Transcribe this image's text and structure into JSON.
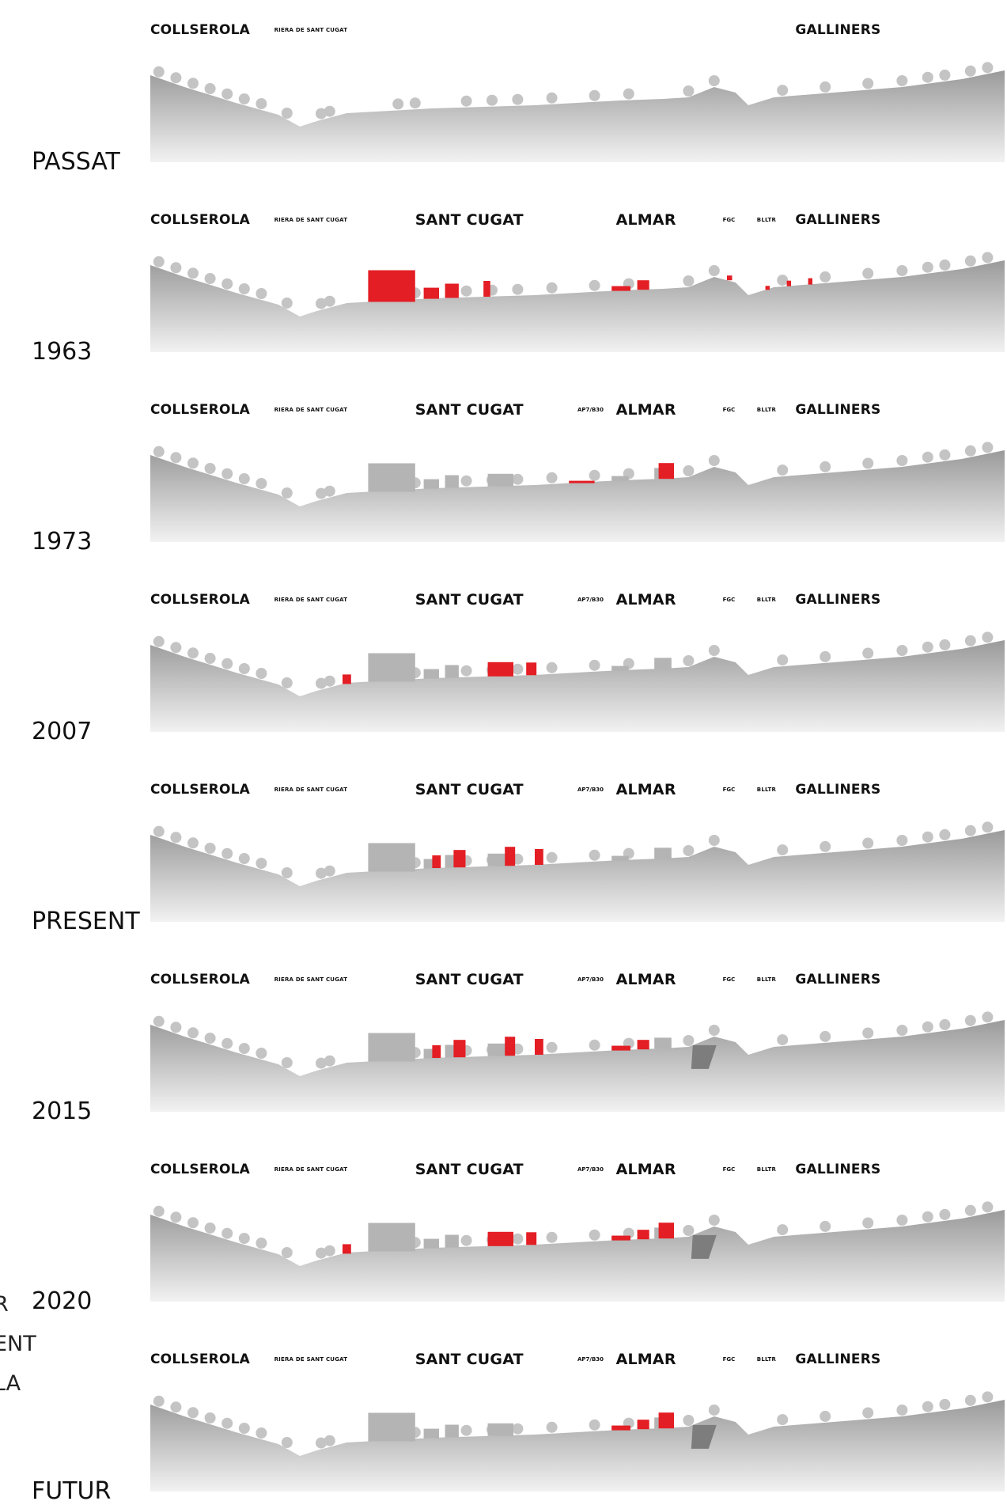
{
  "rows": [
    {
      "year": "PASSAT",
      "labels": {
        "collserola": "COLLSEROLA",
        "riera": "RIERA DE SANT CUGAT",
        "sant_cugat": "",
        "road": "",
        "almar": "",
        "fgc": "",
        "blltr": "",
        "galliners": "GALLINERS"
      }
    },
    {
      "year": "1963",
      "labels": {
        "collserola": "COLLSEROLA",
        "riera": "RIERA DE SANT CUGAT",
        "sant_cugat": "SANT CUGAT",
        "road": "",
        "almar": "ALMAR",
        "fgc": "FGC",
        "blltr": "BLLTR",
        "galliners": "GALLINERS"
      }
    },
    {
      "year": "1973",
      "labels": {
        "collserola": "COLLSEROLA",
        "riera": "RIERA DE SANT CUGAT",
        "sant_cugat": "SANT CUGAT",
        "road": "AP7/B30",
        "almar": "ALMAR",
        "fgc": "FGC",
        "blltr": "BLLTR",
        "galliners": "GALLINERS"
      }
    },
    {
      "year": "2007",
      "labels": {
        "collserola": "COLLSEROLA",
        "riera": "RIERA DE SANT CUGAT",
        "sant_cugat": "SANT CUGAT",
        "road": "AP7/B30",
        "almar": "ALMAR",
        "fgc": "FGC",
        "blltr": "BLLTR",
        "galliners": "GALLINERS"
      }
    },
    {
      "year": "PRESENT",
      "labels": {
        "collserola": "COLLSEROLA",
        "riera": "RIERA DE SANT CUGAT",
        "sant_cugat": "SANT CUGAT",
        "road": "AP7/B30",
        "almar": "ALMAR",
        "fgc": "FGC",
        "blltr": "BLLTR",
        "galliners": "GALLINERS"
      }
    },
    {
      "year": "2015",
      "labels": {
        "collserola": "COLLSEROLA",
        "riera": "RIERA DE SANT CUGAT",
        "sant_cugat": "SANT CUGAT",
        "road": "AP7/B30",
        "almar": "ALMAR",
        "fgc": "FGC",
        "blltr": "BLLTR",
        "galliners": "GALLINERS"
      }
    },
    {
      "year": "2020",
      "labels": {
        "collserola": "COLLSEROLA",
        "riera": "RIERA DE SANT CUGAT",
        "sant_cugat": "SANT CUGAT",
        "road": "AP7/B30",
        "almar": "ALMAR",
        "fgc": "FGC",
        "blltr": "BLLTR",
        "galliners": "GALLINERS"
      }
    },
    {
      "year": "FUTUR",
      "labels": {
        "collserola": "COLLSEROLA",
        "riera": "RIERA DE SANT CUGAT",
        "sant_cugat": "SANT CUGAT",
        "road": "AP7/B30",
        "almar": "ALMAR",
        "fgc": "FGC",
        "blltr": "BLLTR",
        "galliners": "GALLINERS"
      }
    }
  ],
  "left_fragments": [
    "R",
    "ENT",
    "LA"
  ],
  "colors": {
    "terrain_top": "#9a9a9a",
    "terrain_bottom": "#f2f2f2",
    "building_existing": "#b4b4b4",
    "building_new": "#e31e24",
    "trees": "#c4c4c4",
    "excavation": "#7d7d7d"
  },
  "highlights": {
    "PASSAT": [],
    "1963": [
      "sant-cugat-monastery",
      "sant-cugat-blocks",
      "almar-buildings",
      "galliners-houses"
    ],
    "1973": [
      "road-crossing",
      "almar-tower"
    ],
    "2007": [
      "riera-house",
      "sant-cugat-centre-block"
    ],
    "PRESENT": [
      "sant-cugat-towers"
    ],
    "2015": [
      "sant-cugat-towers",
      "almar-buildings"
    ],
    "2020": [
      "riera-house",
      "sant-cugat-centre-block",
      "almar-buildings",
      "almar-tower"
    ],
    "FUTUR": [
      "almar-buildings",
      "almar-tower"
    ]
  }
}
